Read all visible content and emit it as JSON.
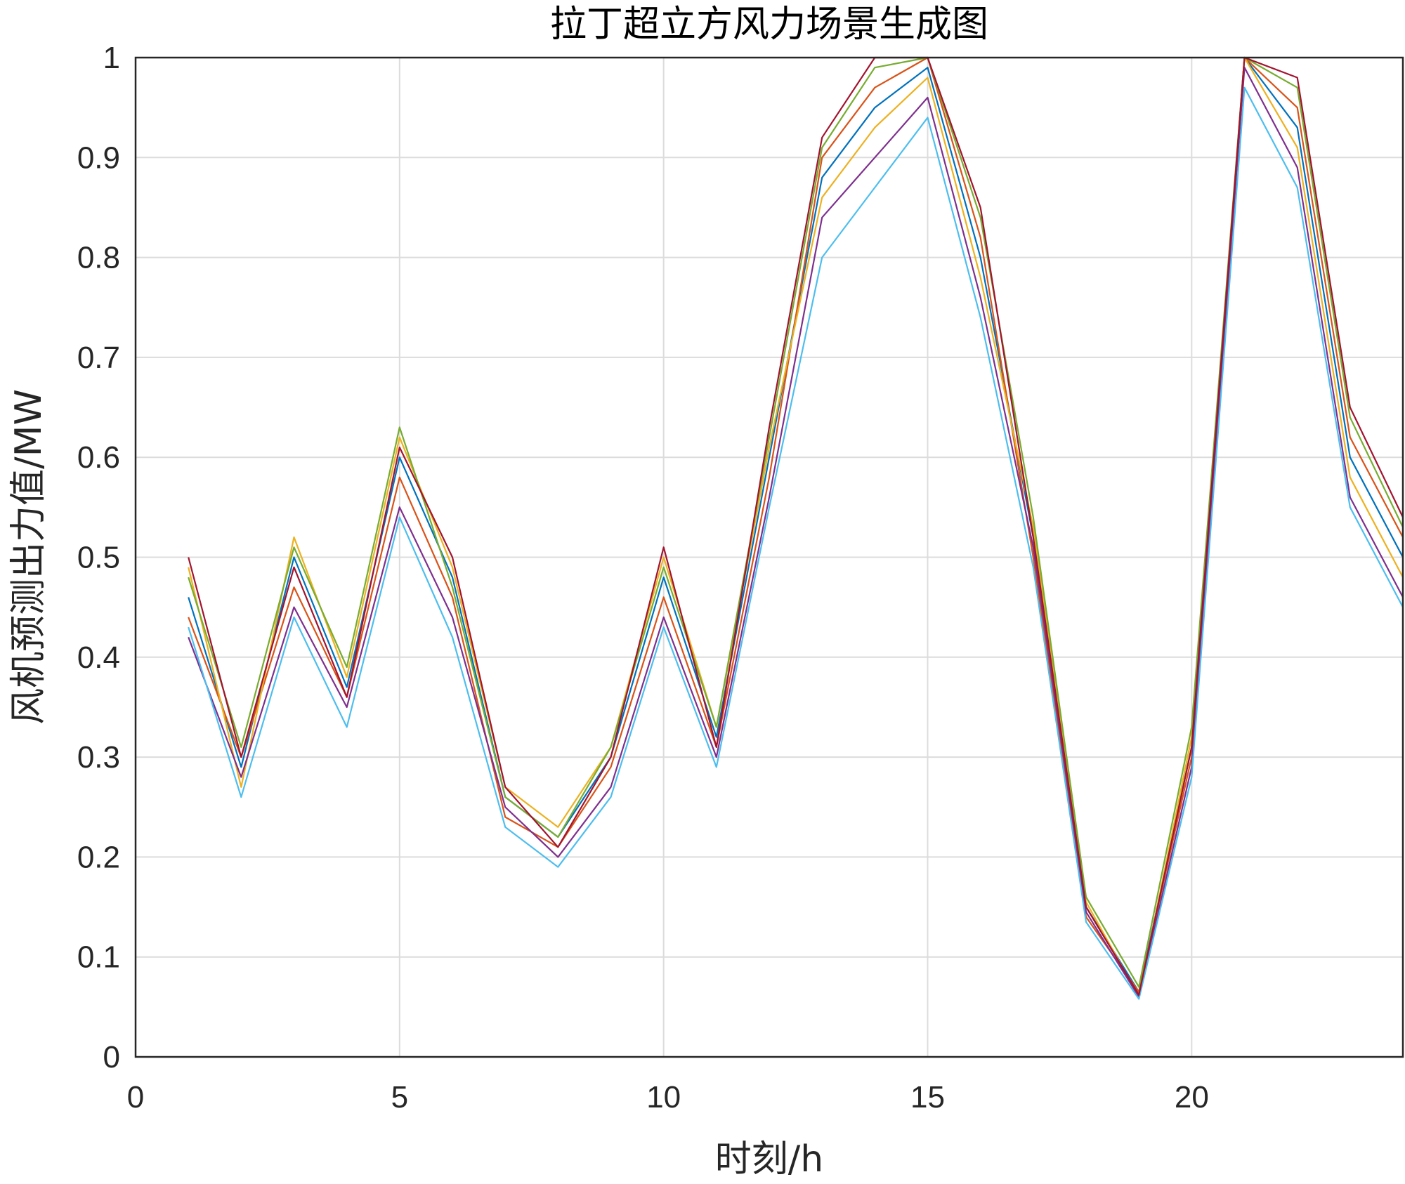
{
  "chart_data": {
    "type": "line",
    "title": "拉丁超立方风力场景生成图",
    "xlabel": "时刻/h",
    "ylabel": "风机预测出力值/MW",
    "xlim": [
      0,
      24
    ],
    "ylim": [
      0,
      1
    ],
    "xticks": [
      0,
      5,
      10,
      15,
      20
    ],
    "yticks": [
      0,
      0.1,
      0.2,
      0.3,
      0.4,
      0.5,
      0.6,
      0.7,
      0.8,
      0.9,
      1
    ],
    "ytick_labels": [
      "0",
      "0.1",
      "0.2",
      "0.3",
      "0.4",
      "0.5",
      "0.6",
      "0.7",
      "0.8",
      "0.9",
      "1"
    ],
    "grid": true,
    "legend": "none",
    "x": [
      1,
      2,
      3,
      4,
      5,
      6,
      7,
      8,
      9,
      10,
      11,
      12,
      13,
      14,
      15,
      16,
      17,
      18,
      19,
      20,
      21,
      22,
      23,
      24
    ],
    "series_colors": [
      "#0072BD",
      "#D95319",
      "#EDB120",
      "#7E2F8E",
      "#77AC30",
      "#4DBEEE",
      "#A2142F"
    ],
    "series": [
      {
        "values": [
          0.46,
          0.29,
          0.5,
          0.37,
          0.6,
          0.48,
          0.26,
          0.22,
          0.3,
          0.48,
          0.32,
          0.6,
          0.88,
          0.95,
          0.99,
          0.8,
          0.52,
          0.15,
          0.065,
          0.31,
          1.0,
          0.93,
          0.6,
          0.5
        ]
      },
      {
        "values": [
          0.44,
          0.3,
          0.47,
          0.36,
          0.58,
          0.46,
          0.24,
          0.21,
          0.29,
          0.46,
          0.31,
          0.58,
          0.9,
          0.97,
          1.0,
          0.82,
          0.5,
          0.14,
          0.065,
          0.3,
          1.0,
          0.95,
          0.62,
          0.52
        ]
      },
      {
        "values": [
          0.49,
          0.27,
          0.52,
          0.38,
          0.62,
          0.49,
          0.27,
          0.23,
          0.31,
          0.5,
          0.33,
          0.61,
          0.86,
          0.93,
          0.98,
          0.78,
          0.53,
          0.155,
          0.06,
          0.32,
          1.0,
          0.91,
          0.58,
          0.48
        ]
      },
      {
        "values": [
          0.42,
          0.28,
          0.45,
          0.35,
          0.55,
          0.44,
          0.25,
          0.2,
          0.27,
          0.44,
          0.3,
          0.56,
          0.84,
          0.9,
          0.96,
          0.76,
          0.51,
          0.145,
          0.06,
          0.29,
          0.99,
          0.89,
          0.56,
          0.46
        ]
      },
      {
        "values": [
          0.48,
          0.31,
          0.51,
          0.39,
          0.63,
          0.47,
          0.26,
          0.22,
          0.31,
          0.49,
          0.33,
          0.62,
          0.91,
          0.99,
          1.0,
          0.84,
          0.54,
          0.16,
          0.07,
          0.33,
          1.0,
          0.97,
          0.64,
          0.53
        ]
      },
      {
        "values": [
          0.43,
          0.26,
          0.44,
          0.33,
          0.54,
          0.42,
          0.23,
          0.19,
          0.26,
          0.43,
          0.29,
          0.55,
          0.8,
          0.87,
          0.94,
          0.74,
          0.49,
          0.135,
          0.058,
          0.28,
          0.97,
          0.87,
          0.55,
          0.45
        ]
      },
      {
        "values": [
          0.5,
          0.3,
          0.49,
          0.36,
          0.61,
          0.5,
          0.27,
          0.21,
          0.3,
          0.51,
          0.31,
          0.63,
          0.92,
          1.0,
          1.0,
          0.85,
          0.52,
          0.15,
          0.062,
          0.31,
          1.0,
          0.98,
          0.65,
          0.54
        ]
      }
    ]
  }
}
